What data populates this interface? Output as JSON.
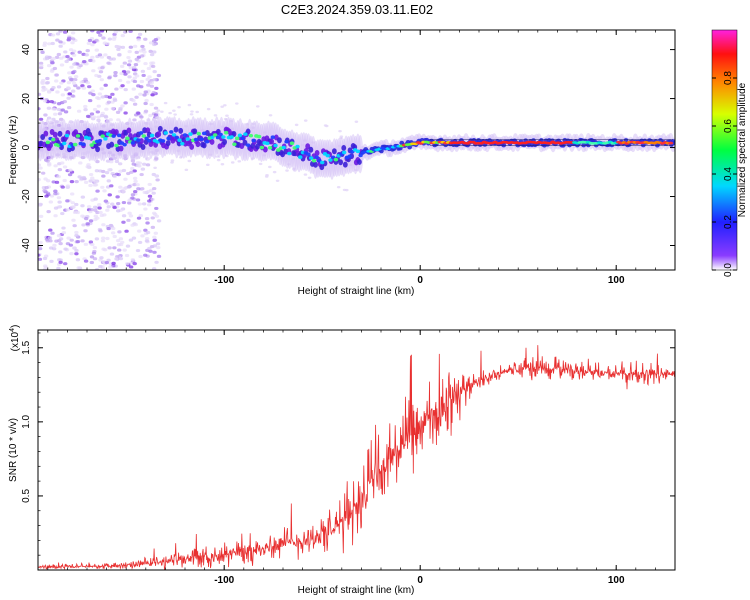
{
  "title": "C2E3.2024.359.03.11.E02",
  "chart_data": [
    {
      "type": "heatmap",
      "name": "spectrogram",
      "xlabel": "Height of straight line (km)",
      "ylabel": "Frequency (Hz)",
      "xlim": [
        -195,
        130
      ],
      "ylim": [
        -50,
        48
      ],
      "xticks": [
        -100,
        0,
        100
      ],
      "yticks": [
        -40,
        -20,
        0,
        20,
        40
      ],
      "xtick_labels": [
        "-100",
        "0",
        "100"
      ],
      "ytick_labels": [
        "-40",
        "-20",
        "0",
        "20",
        "40"
      ],
      "colorbar": {
        "label": "Normalized spectral amplitude",
        "range": [
          0,
          1
        ],
        "ticks": [
          0.0,
          0.2,
          0.4,
          0.6,
          0.8
        ],
        "tick_labels": [
          "0.0",
          "0.2",
          "0.4",
          "0.6",
          "0.8"
        ],
        "stops": [
          "#ffffff",
          "#7f00ff",
          "#0000ff",
          "#00ffff",
          "#00ff00",
          "#ffff00",
          "#ff7f00",
          "#ff0000",
          "#ff00ff"
        ]
      },
      "ridge": [
        {
          "x": -195,
          "y": 3
        },
        {
          "x": -160,
          "y": 3
        },
        {
          "x": -130,
          "y": 4
        },
        {
          "x": -100,
          "y": 4
        },
        {
          "x": -75,
          "y": 2
        },
        {
          "x": -60,
          "y": -2
        },
        {
          "x": -50,
          "y": -5
        },
        {
          "x": -40,
          "y": -4
        },
        {
          "x": -30,
          "y": -2
        },
        {
          "x": -15,
          "y": 0
        },
        {
          "x": 0,
          "y": 2
        },
        {
          "x": 10,
          "y": 2
        },
        {
          "x": 40,
          "y": 2
        },
        {
          "x": 80,
          "y": 2
        },
        {
          "x": 130,
          "y": 2
        }
      ]
    },
    {
      "type": "line",
      "name": "snr",
      "xlabel": "Height of straight line (km)",
      "ylabel": "SNR (10 * v/v)",
      "multiplier_label": "(x10",
      "multiplier_exp": "4",
      "multiplier_close": ")",
      "xlim": [
        -195,
        130
      ],
      "ylim": [
        0,
        1.62
      ],
      "xticks": [
        -100,
        0,
        100
      ],
      "yticks": [
        0.5,
        1.0,
        1.5
      ],
      "xtick_labels": [
        "-100",
        "0",
        "100"
      ],
      "ytick_labels": [
        "0.5",
        "1.0",
        "1.5"
      ],
      "color": "#e83030",
      "envelope": [
        {
          "x": -195,
          "base": 0.02,
          "amp": 0.02
        },
        {
          "x": -150,
          "base": 0.03,
          "amp": 0.03
        },
        {
          "x": -120,
          "base": 0.07,
          "amp": 0.08
        },
        {
          "x": -90,
          "base": 0.12,
          "amp": 0.12
        },
        {
          "x": -75,
          "base": 0.16,
          "amp": 0.14
        },
        {
          "x": -60,
          "base": 0.2,
          "amp": 0.14
        },
        {
          "x": -45,
          "base": 0.26,
          "amp": 0.18
        },
        {
          "x": -35,
          "base": 0.4,
          "amp": 0.3
        },
        {
          "x": -25,
          "base": 0.6,
          "amp": 0.4
        },
        {
          "x": -15,
          "base": 0.75,
          "amp": 0.35
        },
        {
          "x": -5,
          "base": 0.9,
          "amp": 0.3
        },
        {
          "x": 5,
          "base": 1.0,
          "amp": 0.35
        },
        {
          "x": 15,
          "base": 1.12,
          "amp": 0.3
        },
        {
          "x": 25,
          "base": 1.25,
          "amp": 0.1
        },
        {
          "x": 45,
          "base": 1.35,
          "amp": 0.05
        },
        {
          "x": 55,
          "base": 1.36,
          "amp": 0.12
        },
        {
          "x": 70,
          "base": 1.36,
          "amp": 0.1
        },
        {
          "x": 90,
          "base": 1.33,
          "amp": 0.05
        },
        {
          "x": 110,
          "base": 1.32,
          "amp": 0.12
        },
        {
          "x": 130,
          "base": 1.32,
          "amp": 0.04
        }
      ]
    }
  ]
}
